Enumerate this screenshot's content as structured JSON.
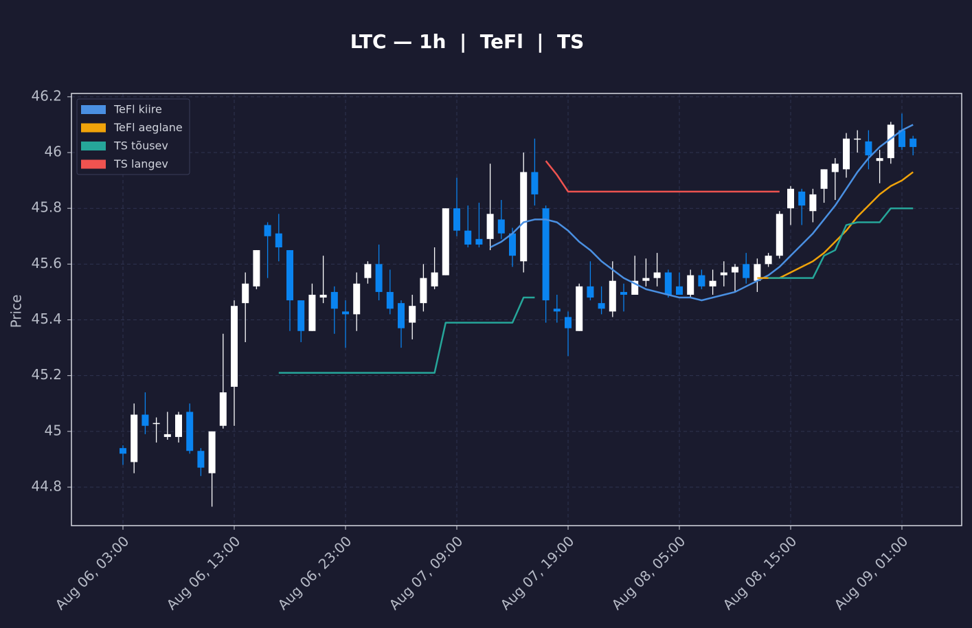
{
  "chart_data": {
    "type": "candlestick",
    "title": "LTC — 1h  |  TeFl  |  TS",
    "ylabel": "Price",
    "x": [
      "Aug 06, 03:00",
      "Aug 06, 04:00",
      "Aug 06, 05:00",
      "Aug 06, 06:00",
      "Aug 06, 07:00",
      "Aug 06, 08:00",
      "Aug 06, 09:00",
      "Aug 06, 10:00",
      "Aug 06, 11:00",
      "Aug 06, 12:00",
      "Aug 06, 13:00",
      "Aug 06, 14:00",
      "Aug 06, 15:00",
      "Aug 06, 16:00",
      "Aug 06, 17:00",
      "Aug 06, 18:00",
      "Aug 06, 19:00",
      "Aug 06, 20:00",
      "Aug 06, 21:00",
      "Aug 06, 22:00",
      "Aug 06, 23:00",
      "Aug 07, 00:00",
      "Aug 07, 01:00",
      "Aug 07, 02:00",
      "Aug 07, 03:00",
      "Aug 07, 04:00",
      "Aug 07, 05:00",
      "Aug 07, 06:00",
      "Aug 07, 07:00",
      "Aug 07, 08:00",
      "Aug 07, 09:00",
      "Aug 07, 10:00",
      "Aug 07, 11:00",
      "Aug 07, 12:00",
      "Aug 07, 13:00",
      "Aug 07, 14:00",
      "Aug 07, 15:00",
      "Aug 07, 16:00",
      "Aug 07, 17:00",
      "Aug 07, 18:00",
      "Aug 07, 19:00",
      "Aug 07, 20:00",
      "Aug 07, 21:00",
      "Aug 07, 22:00",
      "Aug 07, 23:00",
      "Aug 08, 00:00",
      "Aug 08, 01:00",
      "Aug 08, 02:00",
      "Aug 08, 03:00",
      "Aug 08, 04:00",
      "Aug 08, 05:00",
      "Aug 08, 06:00",
      "Aug 08, 07:00",
      "Aug 08, 08:00",
      "Aug 08, 09:00",
      "Aug 08, 10:00",
      "Aug 08, 11:00",
      "Aug 08, 12:00",
      "Aug 08, 13:00",
      "Aug 08, 14:00",
      "Aug 08, 15:00",
      "Aug 08, 16:00",
      "Aug 08, 17:00",
      "Aug 08, 18:00",
      "Aug 08, 19:00",
      "Aug 08, 20:00",
      "Aug 08, 21:00",
      "Aug 08, 22:00",
      "Aug 08, 23:00",
      "Aug 09, 00:00",
      "Aug 09, 01:00",
      "Aug 09, 02:00"
    ],
    "open": [
      44.94,
      44.89,
      45.06,
      45.03,
      44.98,
      44.98,
      45.07,
      44.93,
      44.85,
      45.02,
      45.16,
      45.46,
      45.52,
      45.74,
      45.71,
      45.65,
      45.47,
      45.36,
      45.48,
      45.5,
      45.43,
      45.42,
      45.55,
      45.6,
      45.5,
      45.46,
      45.39,
      45.46,
      45.52,
      45.56,
      45.8,
      45.72,
      45.69,
      45.69,
      45.76,
      45.71,
      45.61,
      45.93,
      45.8,
      45.44,
      45.41,
      45.36,
      45.52,
      45.46,
      45.43,
      45.5,
      45.49,
      45.54,
      45.55,
      45.57,
      45.52,
      45.49,
      45.56,
      45.52,
      45.56,
      45.57,
      45.6,
      45.54,
      45.6,
      45.63,
      45.8,
      45.86,
      45.79,
      45.87,
      45.93,
      45.94,
      46.05,
      46.04,
      45.97,
      45.98,
      46.08,
      46.05
    ],
    "high": [
      44.95,
      45.1,
      45.14,
      45.05,
      45.07,
      45.07,
      45.1,
      44.94,
      45.0,
      45.35,
      45.47,
      45.57,
      45.65,
      45.75,
      45.78,
      45.65,
      45.47,
      45.53,
      45.63,
      45.52,
      45.47,
      45.57,
      45.61,
      45.67,
      45.58,
      45.47,
      45.49,
      45.6,
      45.66,
      45.8,
      45.91,
      45.81,
      45.82,
      45.96,
      45.83,
      45.73,
      46.0,
      46.05,
      45.81,
      45.49,
      45.43,
      45.53,
      45.61,
      45.52,
      45.61,
      45.53,
      45.63,
      45.62,
      45.64,
      45.58,
      45.57,
      45.58,
      45.58,
      45.58,
      45.61,
      45.6,
      45.64,
      45.62,
      45.64,
      45.79,
      45.88,
      45.87,
      45.87,
      45.94,
      45.98,
      46.07,
      46.08,
      46.08,
      46.01,
      46.11,
      46.14,
      46.06
    ],
    "low": [
      44.88,
      44.85,
      44.99,
      44.96,
      44.97,
      44.96,
      44.92,
      44.84,
      44.73,
      45.01,
      45.02,
      45.32,
      45.51,
      45.55,
      45.61,
      45.36,
      45.32,
      45.36,
      45.46,
      45.35,
      45.3,
      45.36,
      45.53,
      45.47,
      45.42,
      45.3,
      45.33,
      45.43,
      45.51,
      45.56,
      45.7,
      45.66,
      45.66,
      45.65,
      45.69,
      45.59,
      45.57,
      45.81,
      45.39,
      45.39,
      45.27,
      45.36,
      45.47,
      45.42,
      45.41,
      45.43,
      45.49,
      45.52,
      45.52,
      45.48,
      45.49,
      45.48,
      45.51,
      45.49,
      45.52,
      45.5,
      45.53,
      45.5,
      45.59,
      45.62,
      45.74,
      45.74,
      45.75,
      45.82,
      45.83,
      45.91,
      46.0,
      45.94,
      45.89,
      45.96,
      46.01,
      45.99
    ],
    "close": [
      44.92,
      45.06,
      45.02,
      45.03,
      44.99,
      45.06,
      44.93,
      44.87,
      45.0,
      45.14,
      45.45,
      45.53,
      45.65,
      45.7,
      45.66,
      45.47,
      45.36,
      45.49,
      45.49,
      45.44,
      45.42,
      45.53,
      45.6,
      45.5,
      45.44,
      45.37,
      45.45,
      45.55,
      45.57,
      45.8,
      45.72,
      45.67,
      45.67,
      45.78,
      45.71,
      45.63,
      45.93,
      45.85,
      45.47,
      45.43,
      45.37,
      45.52,
      45.48,
      45.44,
      45.54,
      45.49,
      45.54,
      45.55,
      45.57,
      45.49,
      45.49,
      45.56,
      45.52,
      45.54,
      45.57,
      45.59,
      45.55,
      45.6,
      45.63,
      45.78,
      45.87,
      45.81,
      45.85,
      45.94,
      45.96,
      46.05,
      46.05,
      45.99,
      45.98,
      46.1,
      46.02,
      46.02
    ],
    "up_color": "#ffffff",
    "down_color": "#0a84f0",
    "series": [
      {
        "name": "TeFl kiire",
        "color": "#4a90e2",
        "values": [
          null,
          null,
          null,
          null,
          null,
          null,
          null,
          null,
          null,
          null,
          null,
          null,
          null,
          null,
          null,
          null,
          null,
          null,
          null,
          null,
          null,
          null,
          null,
          null,
          null,
          null,
          null,
          null,
          null,
          null,
          null,
          null,
          null,
          45.66,
          45.68,
          45.71,
          45.75,
          45.76,
          45.76,
          45.75,
          45.72,
          45.68,
          45.65,
          45.61,
          45.58,
          45.55,
          45.53,
          45.51,
          45.5,
          45.49,
          45.48,
          45.48,
          45.47,
          45.48,
          45.49,
          45.5,
          45.52,
          45.54,
          45.56,
          45.59,
          45.63,
          45.67,
          45.71,
          45.76,
          45.81,
          45.87,
          45.93,
          45.98,
          46.02,
          46.05,
          46.08,
          46.1
        ]
      },
      {
        "name": "TeFl aeglane",
        "color": "#f0a30a",
        "values": [
          null,
          null,
          null,
          null,
          null,
          null,
          null,
          null,
          null,
          null,
          null,
          null,
          null,
          null,
          null,
          null,
          null,
          null,
          null,
          null,
          null,
          null,
          null,
          null,
          null,
          null,
          null,
          null,
          null,
          null,
          null,
          null,
          null,
          null,
          null,
          null,
          null,
          null,
          null,
          null,
          null,
          null,
          null,
          null,
          null,
          null,
          null,
          null,
          null,
          null,
          null,
          null,
          null,
          null,
          null,
          null,
          null,
          45.55,
          45.55,
          45.55,
          45.57,
          45.59,
          45.61,
          45.64,
          45.68,
          45.72,
          45.77,
          45.81,
          45.85,
          45.88,
          45.9,
          45.93
        ]
      },
      {
        "name": "TS tõusev",
        "color": "#26a69a",
        "values": [
          null,
          null,
          null,
          null,
          null,
          null,
          null,
          null,
          null,
          null,
          null,
          null,
          null,
          null,
          45.21,
          45.21,
          45.21,
          45.21,
          45.21,
          45.21,
          45.21,
          45.21,
          45.21,
          45.21,
          45.21,
          45.21,
          45.21,
          45.21,
          45.21,
          45.39,
          45.39,
          45.39,
          45.39,
          45.39,
          45.39,
          45.39,
          45.48,
          45.48,
          null,
          null,
          null,
          null,
          null,
          null,
          null,
          null,
          null,
          null,
          null,
          null,
          null,
          null,
          null,
          null,
          null,
          null,
          null,
          null,
          45.55,
          45.55,
          45.55,
          45.55,
          45.55,
          45.63,
          45.65,
          45.74,
          45.75,
          45.75,
          45.75,
          45.8,
          45.8,
          45.8
        ]
      },
      {
        "name": "TS langev",
        "color": "#ef5350",
        "values": [
          null,
          null,
          null,
          null,
          null,
          null,
          null,
          null,
          null,
          null,
          null,
          null,
          null,
          null,
          null,
          null,
          null,
          null,
          null,
          null,
          null,
          null,
          null,
          null,
          null,
          null,
          null,
          null,
          null,
          null,
          null,
          null,
          null,
          null,
          null,
          null,
          null,
          null,
          45.97,
          45.92,
          45.86,
          45.86,
          45.86,
          45.86,
          45.86,
          45.86,
          45.86,
          45.86,
          45.86,
          45.86,
          45.86,
          45.86,
          45.86,
          45.86,
          45.86,
          45.86,
          45.86,
          45.86,
          45.86,
          45.86,
          null,
          null,
          null,
          null,
          null,
          null,
          null,
          null,
          null,
          null,
          null,
          null
        ]
      }
    ],
    "ylim": [
      44.662,
      46.212
    ],
    "yticks": [
      44.8,
      45.0,
      45.2,
      45.4,
      45.6,
      45.8,
      46.0,
      46.2
    ],
    "xticks": [
      "Aug 06, 03:00",
      "Aug 06, 13:00",
      "Aug 06, 23:00",
      "Aug 07, 09:00",
      "Aug 07, 19:00",
      "Aug 08, 05:00",
      "Aug 08, 15:00",
      "Aug 09, 01:00"
    ],
    "grid": true,
    "legend": "upper left"
  }
}
